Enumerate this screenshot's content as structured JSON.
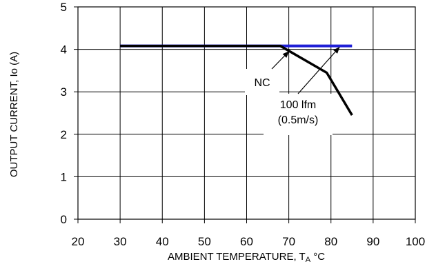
{
  "chart_data": {
    "type": "line",
    "title": "",
    "xlabel": "AMBIENT TEMPERATURE, T",
    "xlabel_sub": "A",
    "xlabel_unit": " °C",
    "ylabel": "OUTPUT CURRENT, Io  (A)",
    "xlim": [
      20,
      100
    ],
    "ylim": [
      0,
      5
    ],
    "xticks": [
      "20",
      "30",
      "40",
      "50",
      "60",
      "70",
      "80",
      "90",
      "100"
    ],
    "yticks": [
      "0",
      "1",
      "2",
      "3",
      "4",
      "5"
    ],
    "grid": true,
    "colors": {
      "series_100lfm": "#1f1fd6",
      "series_nc": "#000000"
    },
    "series": [
      {
        "name": "100 lfm (0.5m/s)",
        "x": [
          30,
          85
        ],
        "y": [
          4.08,
          4.08
        ]
      },
      {
        "name": "NC",
        "x": [
          30,
          68,
          79,
          85
        ],
        "y": [
          4.08,
          4.08,
          3.45,
          2.45
        ]
      }
    ],
    "annotations": [
      {
        "id": "nc",
        "lines": [
          "NC"
        ],
        "target": [
          70,
          3.95
        ]
      },
      {
        "id": "lfm",
        "lines": [
          "100 lfm",
          "(0.5m/s)"
        ],
        "target": [
          82,
          4.05
        ]
      }
    ]
  }
}
